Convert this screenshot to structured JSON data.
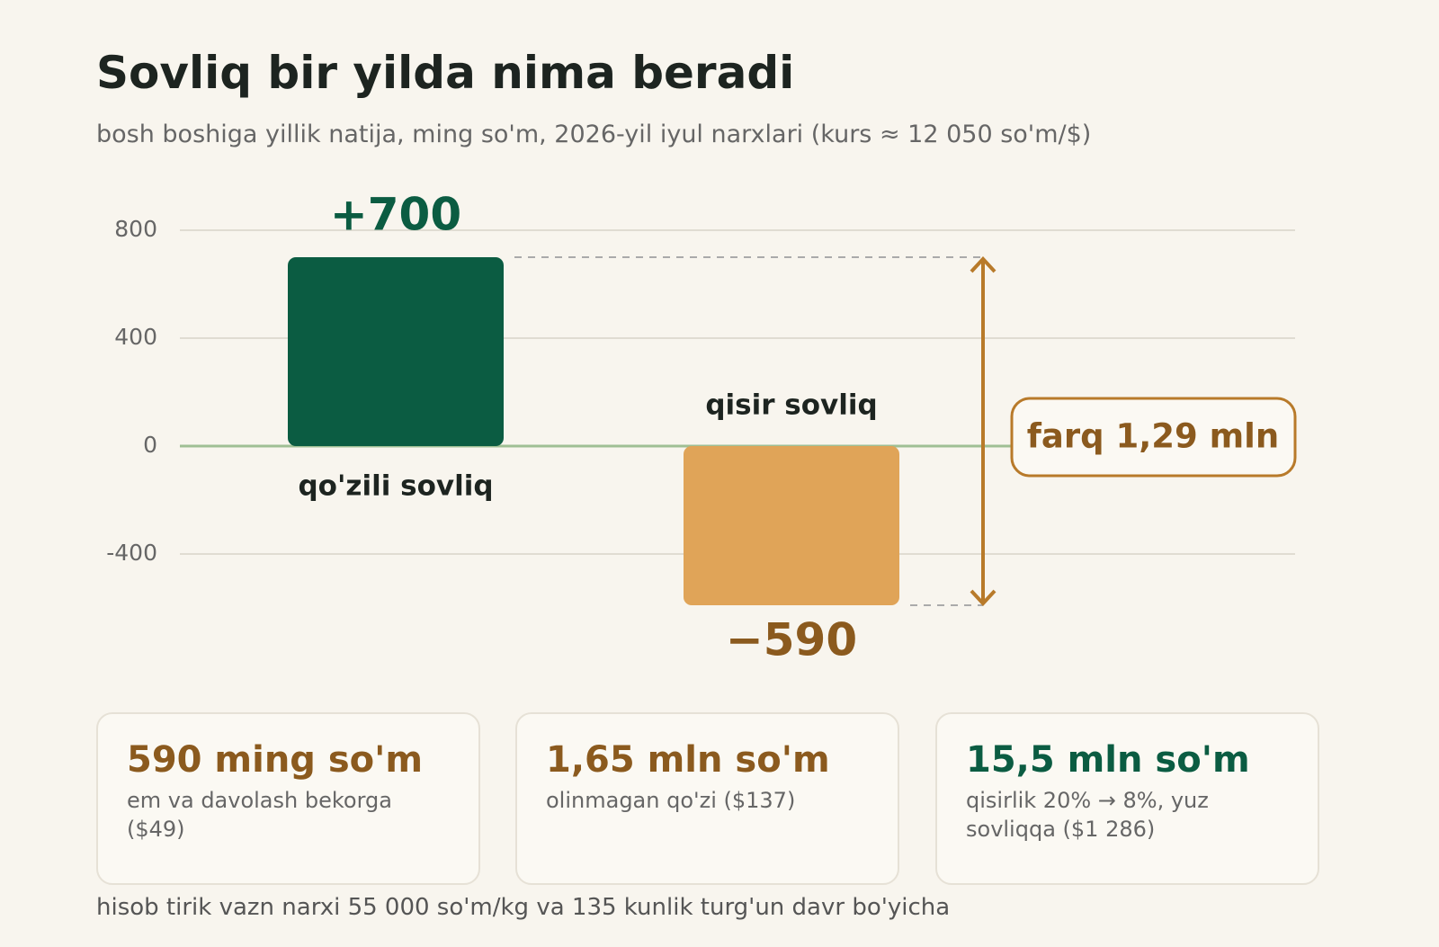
{
  "chart_data": {
    "type": "bar",
    "title": "Sovliq bir yilda nima beradi",
    "subtitle": "bosh boshiga yillik natija, ming so'm, 2026-yil iyul narxlari (kurs ≈ 12 050 so'm/$)",
    "categories": [
      "qo'zili sovliq",
      "qisir sovliq"
    ],
    "values": [
      700,
      -590
    ],
    "value_labels": [
      "+700",
      "−590"
    ],
    "colors": [
      "#0b5c42",
      "#e0a458"
    ],
    "value_label_colors": [
      "#0b5c42",
      "#8b5a1e"
    ],
    "ylim": [
      -600,
      800
    ],
    "yticks": [
      -400,
      0,
      400,
      800
    ],
    "grid": true,
    "annotation": "farq 1,29 mln"
  },
  "cards": [
    {
      "value": "590 ming so'm",
      "label": "em va davolash bekorga ($49)",
      "color": "#8b5a1e"
    },
    {
      "value": "1,65 mln so'm",
      "label": "olinmagan qo'zi ($137)",
      "color": "#8b5a1e"
    },
    {
      "value": "15,5 mln so'm",
      "label": "qisirlik 20% → 8%, yuz sovliqqa ($1 286)",
      "color": "#0b5c42"
    }
  ],
  "footnote": "hisob tirik vazn narxi 55 000 so'm/kg va 135 kunlik turg'un davr bo'yicha"
}
